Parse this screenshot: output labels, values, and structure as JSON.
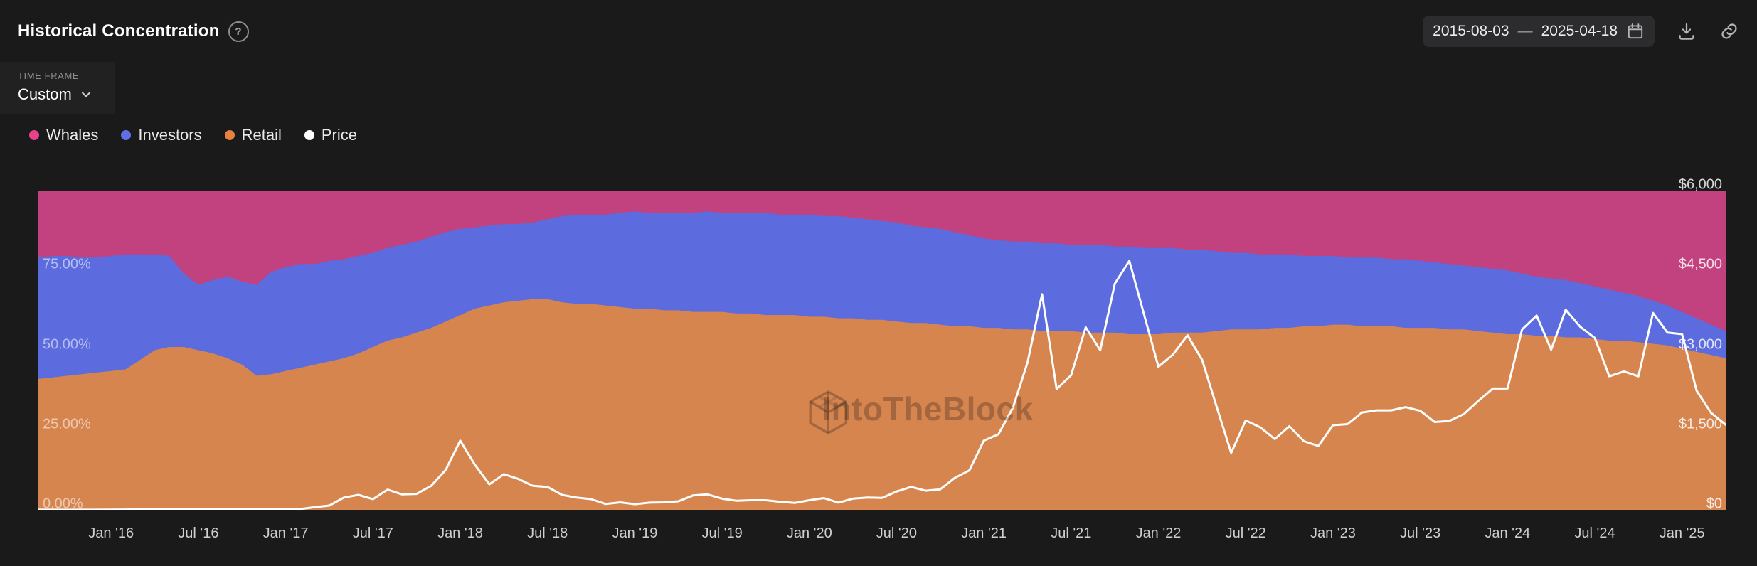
{
  "header": {
    "title": "Historical Concentration",
    "help_icon": "?",
    "date_start": "2015-08-03",
    "date_separator": "—",
    "date_end": "2025-04-18"
  },
  "timeframe": {
    "label": "TIME FRAME",
    "value": "Custom"
  },
  "legend": {
    "items": [
      {
        "label": "Whales",
        "color": "#e8438a"
      },
      {
        "label": "Investors",
        "color": "#5f6fe8"
      },
      {
        "label": "Retail",
        "color": "#e8803f"
      },
      {
        "label": "Price",
        "color": "#ffffff"
      }
    ]
  },
  "chart_data": {
    "type": "area",
    "stacked_percent": true,
    "title": "Historical Concentration",
    "watermark": "IntoTheBlock",
    "x_range": [
      "2015-08",
      "2025-04"
    ],
    "x_interval": "monthly",
    "x_points": 117,
    "ylim_left": [
      0,
      100
    ],
    "y_axis_left": {
      "unit": "%",
      "ticks": [
        {
          "value": 0,
          "label": "0.00%"
        },
        {
          "value": 25,
          "label": "25.00%"
        },
        {
          "value": 50,
          "label": "50.00%"
        },
        {
          "value": 75,
          "label": "75.00%"
        }
      ]
    },
    "y_axis_right": {
      "unit": "USD",
      "max": 6000,
      "ticks": [
        {
          "value": 0,
          "label": "$0"
        },
        {
          "value": 1500,
          "label": "$1,500"
        },
        {
          "value": 3000,
          "label": "$3,000"
        },
        {
          "value": 4500,
          "label": "$4,500"
        },
        {
          "value": 6000,
          "label": "$6,000"
        }
      ]
    },
    "x_tick_labels": [
      {
        "label": "Jan '16",
        "month_index": 5
      },
      {
        "label": "Jul '16",
        "month_index": 11
      },
      {
        "label": "Jan '17",
        "month_index": 17
      },
      {
        "label": "Jul '17",
        "month_index": 23
      },
      {
        "label": "Jan '18",
        "month_index": 29
      },
      {
        "label": "Jul '18",
        "month_index": 35
      },
      {
        "label": "Jan '19",
        "month_index": 41
      },
      {
        "label": "Jul '19",
        "month_index": 47
      },
      {
        "label": "Jan '20",
        "month_index": 53
      },
      {
        "label": "Jul '20",
        "month_index": 59
      },
      {
        "label": "Jan '21",
        "month_index": 65
      },
      {
        "label": "Jul '21",
        "month_index": 71
      },
      {
        "label": "Jan '22",
        "month_index": 77
      },
      {
        "label": "Jul '22",
        "month_index": 83
      },
      {
        "label": "Jan '23",
        "month_index": 89
      },
      {
        "label": "Jul '23",
        "month_index": 95
      },
      {
        "label": "Jan '24",
        "month_index": 101
      },
      {
        "label": "Jul '24",
        "month_index": 107
      },
      {
        "label": "Jan '25",
        "month_index": 113
      }
    ],
    "series": [
      {
        "name": "Whales",
        "color": "#c2417f",
        "values": [
          21,
          20.5,
          20.5,
          21,
          21,
          20.5,
          20,
          20,
          20,
          20.5,
          26,
          29.5,
          28,
          27,
          28.5,
          29.5,
          25.5,
          24,
          23,
          23,
          22,
          21.5,
          20.5,
          19.5,
          18,
          17,
          16,
          14.5,
          13,
          12,
          11.5,
          11,
          10.5,
          10.5,
          10,
          9,
          8,
          7.5,
          7.5,
          7.5,
          7,
          6.5,
          7,
          7,
          7,
          7,
          6.5,
          7,
          7,
          7,
          7,
          7.5,
          7.5,
          7.5,
          8,
          8,
          8.5,
          9,
          9.5,
          10,
          11,
          11.5,
          12,
          13,
          14,
          15,
          15.5,
          16,
          16,
          16.5,
          16.5,
          17,
          17,
          17,
          17.5,
          17.5,
          18,
          18,
          18,
          18.5,
          18.5,
          19,
          19.5,
          19.5,
          20,
          20,
          20,
          20.5,
          20.5,
          20.5,
          21,
          21,
          21,
          21.5,
          21.5,
          22,
          22.5,
          23,
          23.5,
          24,
          24.5,
          25,
          26,
          27,
          27.5,
          28,
          29,
          30,
          31,
          32,
          33,
          34.5,
          36,
          38,
          40,
          42,
          44
        ]
      },
      {
        "name": "Investors",
        "color": "#5c6bdd",
        "values": [
          38,
          38,
          37.5,
          36.5,
          36,
          36,
          36,
          33,
          30,
          28.5,
          23,
          20.5,
          23,
          25.5,
          26,
          28.5,
          32,
          32.5,
          32.5,
          31.5,
          31.5,
          31,
          30.5,
          29.5,
          29,
          29,
          28.5,
          28.5,
          28,
          27,
          25.5,
          25,
          24.5,
          24,
          24,
          25,
          27,
          28,
          28,
          28.5,
          29.5,
          30.5,
          30,
          30.5,
          30.5,
          31,
          31.5,
          31,
          31.5,
          31.5,
          32,
          31.5,
          31.5,
          32,
          31.5,
          32,
          31.5,
          31.5,
          31,
          31,
          30.5,
          30,
          30,
          29.5,
          28.5,
          28,
          27.5,
          27.5,
          27.5,
          27.5,
          27.5,
          27,
          27.5,
          27.5,
          27,
          27.5,
          27,
          27,
          26.5,
          26,
          26,
          25,
          24,
          24,
          23.5,
          23,
          23,
          22,
          22,
          21.5,
          21,
          21.5,
          21.5,
          21,
          21.5,
          21,
          20.5,
          20.5,
          20,
          20,
          20,
          20,
          19,
          18.5,
          18,
          18,
          17,
          16.5,
          16,
          15,
          14.5,
          13.5,
          12.5,
          11.5,
          10.5,
          9.5,
          8.5
        ]
      },
      {
        "name": "Retail",
        "color": "#d6854f",
        "values": [
          41,
          41.5,
          42,
          42.5,
          43,
          43.5,
          44,
          47,
          50,
          51,
          51,
          50,
          49,
          47.5,
          45.5,
          42,
          42.5,
          43.5,
          44.5,
          45.5,
          46.5,
          47.5,
          49,
          51,
          53,
          54,
          55.5,
          57,
          59,
          61,
          63,
          64,
          65,
          65.5,
          66,
          66,
          65,
          64.5,
          64.5,
          64,
          63.5,
          63,
          63,
          62.5,
          62.5,
          62,
          62,
          62,
          61.5,
          61.5,
          61,
          61,
          61,
          60.5,
          60.5,
          60,
          60,
          59.5,
          59.5,
          59,
          58.5,
          58.5,
          58,
          57.5,
          57.5,
          57,
          57,
          56.5,
          56.5,
          56,
          56,
          56,
          55.5,
          55.5,
          55.5,
          55,
          55,
          55,
          55.5,
          55.5,
          55.5,
          56,
          56.5,
          56.5,
          56.5,
          57,
          57,
          57.5,
          57.5,
          58,
          58,
          57.5,
          57.5,
          57.5,
          57,
          57,
          57,
          56.5,
          56.5,
          56,
          55.5,
          55,
          55,
          54.5,
          54.5,
          54,
          54,
          53.5,
          53,
          53,
          52.5,
          52,
          51.5,
          50.5,
          49.5,
          48.5,
          47.5
        ]
      }
    ],
    "price": {
      "name": "Price",
      "color": "#ffffff",
      "values": [
        1.2,
        0.9,
        0.6,
        0.9,
        0.9,
        2.3,
        6,
        11,
        8.5,
        14,
        14,
        11,
        11,
        13,
        11,
        9.5,
        8,
        10,
        15,
        50,
        80,
        230,
        280,
        200,
        380,
        290,
        300,
        450,
        750,
        1300,
        850,
        480,
        670,
        580,
        450,
        430,
        280,
        230,
        200,
        110,
        140,
        105,
        135,
        140,
        160,
        270,
        290,
        210,
        170,
        180,
        180,
        150,
        130,
        180,
        220,
        135,
        210,
        230,
        225,
        345,
        430,
        360,
        385,
        600,
        740,
        1300,
        1420,
        1920,
        2770,
        4050,
        2270,
        2530,
        3430,
        3000,
        4250,
        4680,
        3680,
        2690,
        2920,
        3280,
        2820,
        1940,
        1070,
        1680,
        1550,
        1330,
        1570,
        1290,
        1200,
        1590,
        1610,
        1830,
        1870,
        1870,
        1930,
        1860,
        1650,
        1670,
        1800,
        2050,
        2280,
        2280,
        3390,
        3650,
        3010,
        3760,
        3440,
        3230,
        2510,
        2600,
        2510,
        3700,
        3330,
        3300,
        2240,
        1820,
        1600
      ]
    }
  }
}
